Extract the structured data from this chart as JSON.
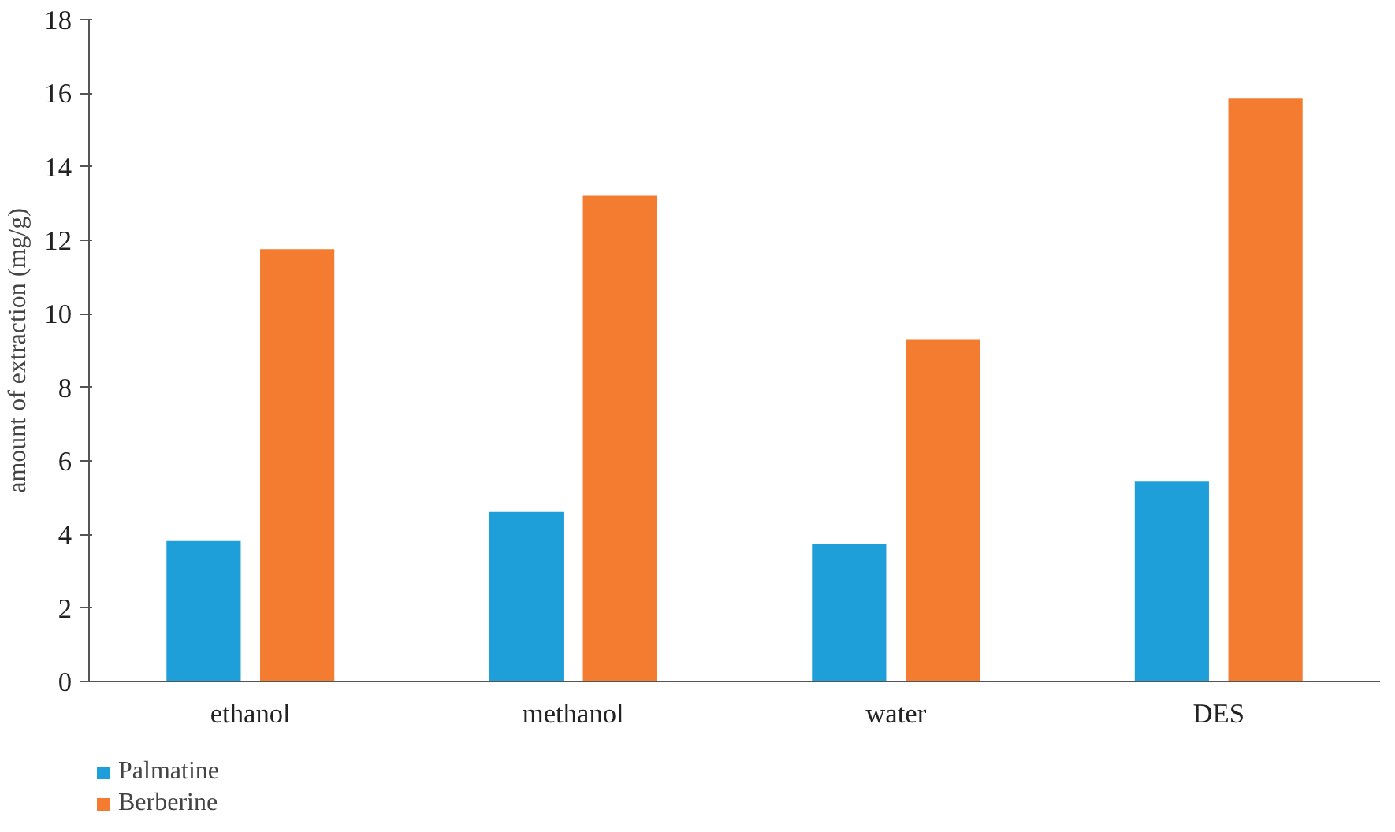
{
  "chart_data": {
    "type": "bar",
    "ylabel": "amount of extraction (mg/g)",
    "categories": [
      "ethanol",
      "methanol",
      "water",
      "DES"
    ],
    "series": [
      {
        "name": "Palmatine",
        "color": "#1f9fd9",
        "values": [
          3.82,
          4.61,
          3.73,
          5.44
        ]
      },
      {
        "name": "Berberine",
        "color": "#f47c30",
        "values": [
          11.76,
          13.21,
          9.31,
          15.85
        ]
      }
    ],
    "ylim": [
      0,
      18
    ],
    "yticks": [
      0,
      2,
      4,
      6,
      8,
      10,
      12,
      14,
      16,
      18
    ],
    "grid": false,
    "legend": "bottom left"
  }
}
